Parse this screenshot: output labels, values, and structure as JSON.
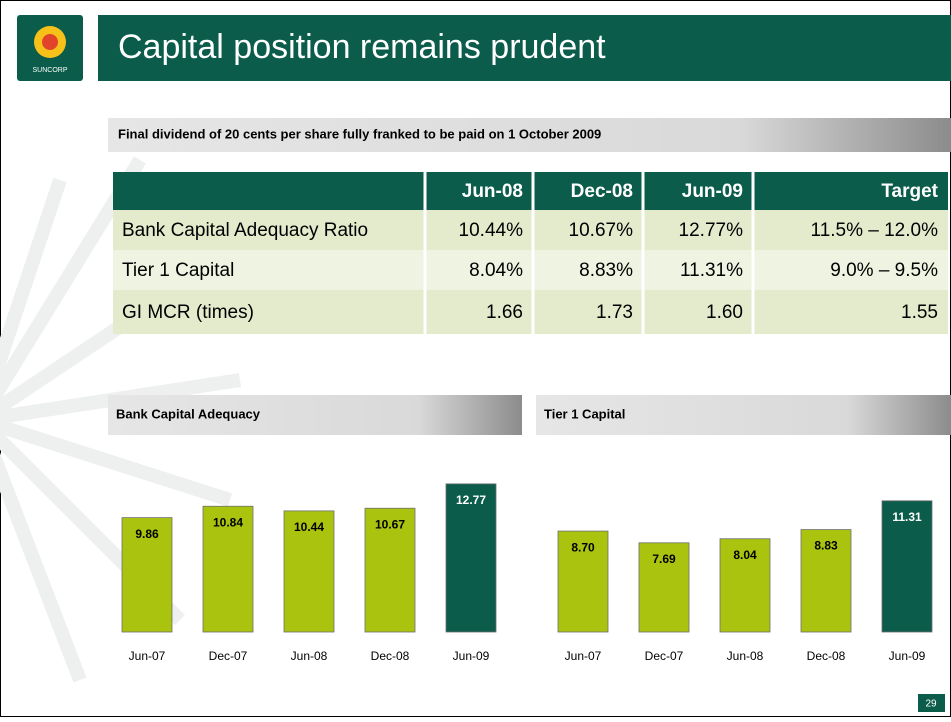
{
  "logo_text": "SUNCORP",
  "header": {
    "title": "Capital position remains prudent"
  },
  "subtitle": "Final dividend of 20 cents per share fully franked to be paid on 1 October 2009",
  "table": {
    "columns": [
      "Jun-08",
      "Dec-08",
      "Jun-09",
      "Target"
    ],
    "rows": [
      {
        "label": "Bank Capital Adequacy Ratio",
        "cells": [
          "10.44%",
          "10.67%",
          "12.77%",
          "11.5% – 12.0%"
        ]
      },
      {
        "label": "Tier 1 Capital",
        "cells": [
          "8.04%",
          "8.83%",
          "11.31%",
          "9.0% – 9.5%"
        ]
      },
      {
        "label": "GI MCR (times)",
        "cells": [
          "1.66",
          "1.73",
          "1.60",
          "1.55"
        ]
      }
    ]
  },
  "chart_data": [
    {
      "type": "bar",
      "title": "Bank Capital Adequacy",
      "categories": [
        "Jun-07",
        "Dec-07",
        "Jun-08",
        "Dec-08",
        "Jun-09"
      ],
      "values": [
        9.86,
        10.84,
        10.44,
        10.67,
        12.77
      ],
      "colors": [
        "#a9c30f",
        "#a9c30f",
        "#a9c30f",
        "#a9c30f",
        "#0b5c4b"
      ]
    },
    {
      "type": "bar",
      "title": "Tier 1 Capital",
      "categories": [
        "Jun-07",
        "Dec-07",
        "Jun-08",
        "Dec-08",
        "Jun-09"
      ],
      "values": [
        8.7,
        7.69,
        8.04,
        8.83,
        11.31
      ],
      "value_labels": [
        "8.70",
        "7.69",
        "8.04",
        "8.83",
        "11.31"
      ],
      "colors": [
        "#a9c30f",
        "#a9c30f",
        "#a9c30f",
        "#a9c30f",
        "#0b5c4b"
      ]
    }
  ],
  "page_number": "29"
}
